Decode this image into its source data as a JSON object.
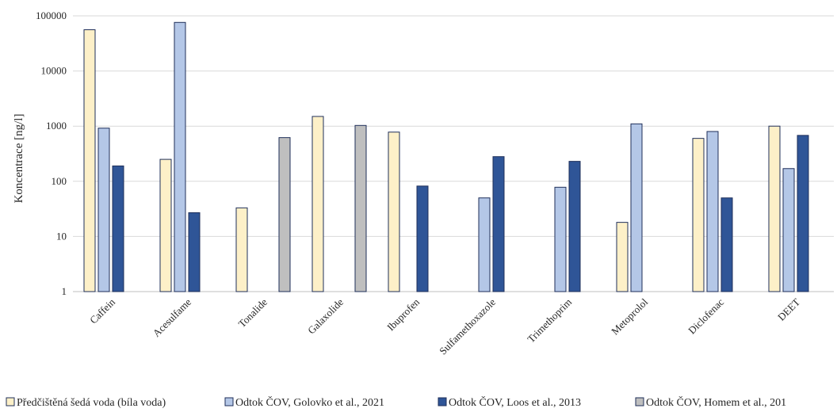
{
  "chart_data": {
    "type": "bar",
    "title": "",
    "xlabel": "",
    "ylabel": "Koncentrace [ng/l]",
    "yscale": "log",
    "ylim": [
      1,
      100000
    ],
    "yticks": [
      "1",
      "10",
      "100",
      "1000",
      "10000",
      "100000"
    ],
    "grid": true,
    "legend_position": "bottom",
    "categories": [
      "Caffein",
      "Acesulfame",
      "Tonalide",
      "Galaxolide",
      "Ibuprofen",
      "Sulfamethoxazole",
      "Trimethoprim",
      "Metoprolol",
      "Diclofenac",
      "DEET"
    ],
    "series": [
      {
        "name": "Předčištěná šedá voda (bíla voda)",
        "color": "#fdf0c8",
        "values": [
          56000,
          250,
          33,
          1500,
          780,
          null,
          null,
          18,
          600,
          1000
        ]
      },
      {
        "name": "Odtok ČOV, Golovko et al., 2021",
        "color": "#b4c7e7",
        "values": [
          920,
          76000,
          null,
          null,
          null,
          50,
          78,
          1100,
          800,
          170
        ]
      },
      {
        "name": "Odtok ČOV, Loos et al., 2013",
        "color": "#2f5597",
        "values": [
          190,
          27,
          null,
          null,
          82,
          280,
          230,
          null,
          50,
          680
        ]
      },
      {
        "name": "Odtok ČOV, Homem et al., 201",
        "color": "#bfbfbf",
        "values": [
          null,
          null,
          620,
          1030,
          null,
          null,
          null,
          null,
          null,
          null
        ]
      }
    ]
  }
}
